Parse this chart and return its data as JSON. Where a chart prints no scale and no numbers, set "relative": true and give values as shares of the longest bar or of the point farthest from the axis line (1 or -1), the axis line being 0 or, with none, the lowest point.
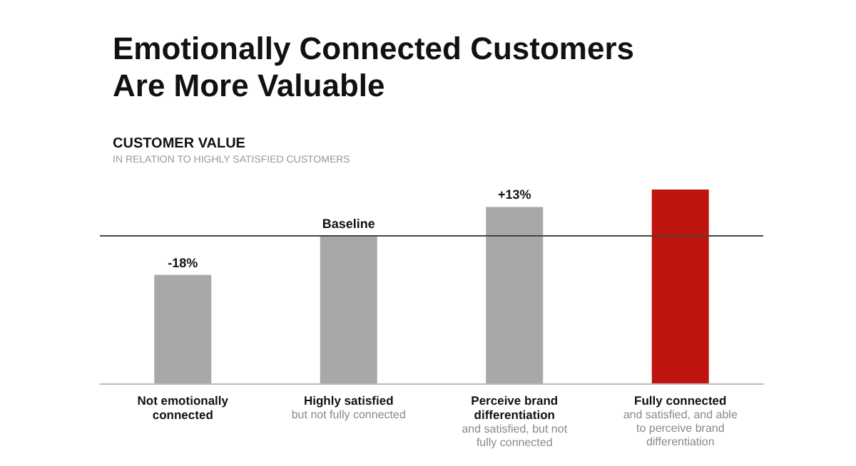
{
  "chart_data": {
    "type": "bar",
    "title": "Emotionally Connected Customers\nAre More Valuable",
    "subtitle": "CUSTOMER VALUE",
    "categories": [
      "Not emotionally connected",
      "Highly satisfied\nbut not fully connected",
      "Perceive brand differentiation\nand satisfied, but not fully connected",
      "Fully connected\nand satisfied, and able to perceive brand differentiation"
    ],
    "values": [
      0.56,
      0.76,
      0.91,
      1
    ],
    "colors": [
      "#a8a8a8",
      "#a8a8a8",
      "#a8a8a8",
      "#c0140f"
    ],
    "relative": true,
    "ref_lines": [
      {
        "axis": "y",
        "value": 0.76,
        "color": "#444444"
      }
    ],
    "annotations": [
      "IN RELATION TO HIGHLY SATISFIED CUSTOMERS",
      {
        "text": "-18%",
        "x": "Not emotionally connected",
        "y": 0.56
      },
      {
        "text": "Baseline",
        "x": "Highly satisfied\nbut not fully connected",
        "y": 0.76
      },
      {
        "text": "+13%",
        "x": "Perceive brand differentiation\nand satisfied, but not fully connected",
        "y": 0.91
      }
    ]
  }
}
